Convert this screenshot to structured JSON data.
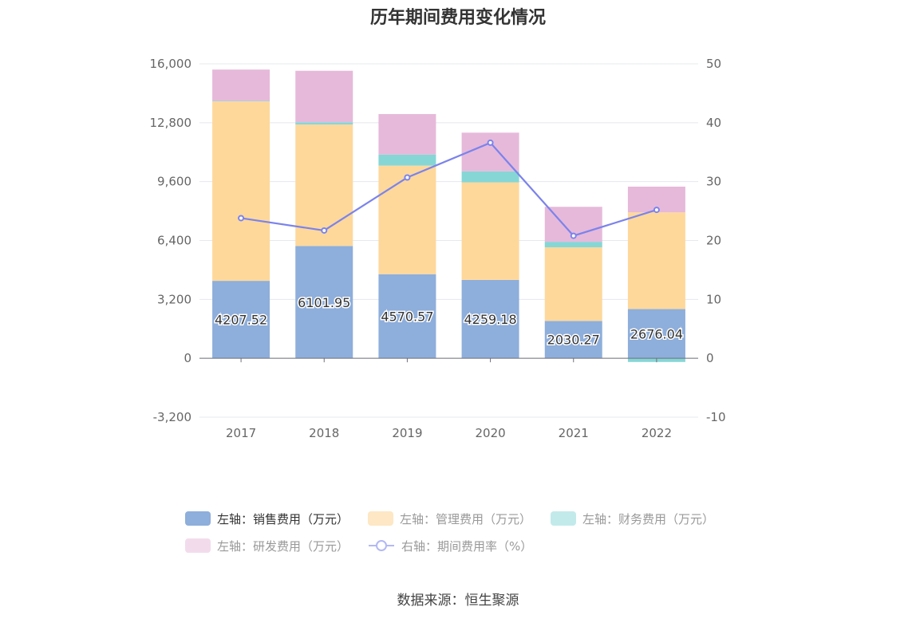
{
  "title": "历年期间费用变化情况",
  "source": "数据来源：恒生聚源",
  "chart_data": {
    "type": "bar",
    "stacked": true,
    "categories": [
      "2017",
      "2018",
      "2019",
      "2020",
      "2021",
      "2022"
    ],
    "left_axis": {
      "ticks": [
        "-3,200",
        "0",
        "3,200",
        "6,400",
        "9,600",
        "12,800",
        "16,000"
      ],
      "ylim": [
        -3200,
        16000
      ]
    },
    "right_axis": {
      "ticks": [
        "-10",
        "0",
        "10",
        "20",
        "30",
        "40",
        "50"
      ],
      "ylim": [
        -10,
        50
      ]
    },
    "series": [
      {
        "name": "左轴：销售费用（万元）",
        "type": "bar",
        "color": "#8eaedb",
        "values": [
          4207.52,
          6101.95,
          4570.57,
          4259.18,
          2030.27,
          2676.04
        ],
        "labels": [
          "4207.52",
          "6101.95",
          "4570.57",
          "4259.18",
          "2030.27",
          "2676.04"
        ]
      },
      {
        "name": "左轴：管理费用（万元）",
        "type": "bar",
        "color": "#fed89b",
        "values": [
          9750,
          6600,
          5900,
          5300,
          4000,
          5250
        ]
      },
      {
        "name": "左轴：财务费用（万元）",
        "type": "bar",
        "color": "#86d6d6",
        "values": [
          30,
          120,
          600,
          600,
          300,
          -200
        ]
      },
      {
        "name": "左轴：研发费用（万元）",
        "type": "bar",
        "color": "#e6b9da",
        "values": [
          1700,
          2800,
          2200,
          2100,
          1900,
          1400
        ]
      },
      {
        "name": "右轴：期间费用率（%）",
        "type": "line",
        "color": "#7b83eb",
        "values": [
          23.8,
          21.7,
          30.7,
          36.6,
          20.8,
          25.2
        ]
      }
    ],
    "grid": true,
    "legend_position": "bottom"
  }
}
